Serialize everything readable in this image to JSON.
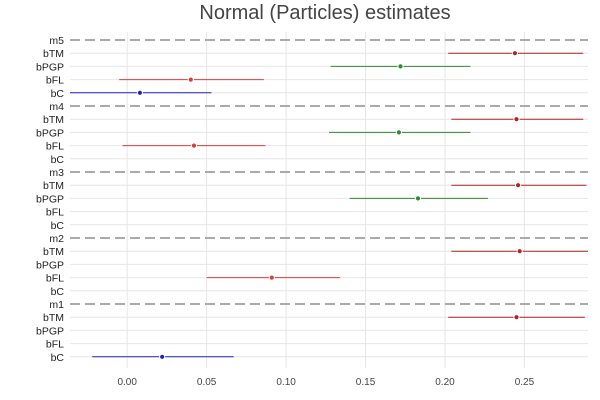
{
  "chart_data": {
    "type": "forest",
    "title": "Normal (Particles) estimates",
    "xlabel": "",
    "ylabel": "",
    "xlim": [
      -0.036,
      0.29
    ],
    "xticks": [
      0.0,
      0.05,
      0.1,
      0.15,
      0.2,
      0.25
    ],
    "xtick_labels": [
      "0.00",
      "0.05",
      "0.10",
      "0.15",
      "0.20",
      "0.25"
    ],
    "grid": true,
    "term_colors": {
      "bTM": "#b22222",
      "bPGP": "#2e8b2e",
      "bFL": "#e03c3c",
      "bC": "#2222bb"
    },
    "groups": [
      {
        "name": "m5",
        "rows": [
          {
            "term": "bTM",
            "estimate": 0.244,
            "low": 0.202,
            "high": 0.287
          },
          {
            "term": "bPGP",
            "estimate": 0.172,
            "low": 0.128,
            "high": 0.216
          },
          {
            "term": "bFL",
            "estimate": 0.04,
            "low": -0.005,
            "high": 0.086
          },
          {
            "term": "bC",
            "estimate": 0.008,
            "low": -0.036,
            "high": 0.053
          }
        ]
      },
      {
        "name": "m4",
        "rows": [
          {
            "term": "bTM",
            "estimate": 0.245,
            "low": 0.204,
            "high": 0.287
          },
          {
            "term": "bPGP",
            "estimate": 0.171,
            "low": 0.127,
            "high": 0.216
          },
          {
            "term": "bFL",
            "estimate": 0.042,
            "low": -0.003,
            "high": 0.087
          },
          {
            "term": "bC"
          }
        ]
      },
      {
        "name": "m3",
        "rows": [
          {
            "term": "bTM",
            "estimate": 0.246,
            "low": 0.204,
            "high": 0.289
          },
          {
            "term": "bPGP",
            "estimate": 0.183,
            "low": 0.14,
            "high": 0.227
          },
          {
            "term": "bFL"
          },
          {
            "term": "bC"
          }
        ]
      },
      {
        "name": "m2",
        "rows": [
          {
            "term": "bTM",
            "estimate": 0.247,
            "low": 0.204,
            "high": 0.29
          },
          {
            "term": "bPGP"
          },
          {
            "term": "bFL",
            "estimate": 0.091,
            "low": 0.05,
            "high": 0.134
          },
          {
            "term": "bC"
          }
        ]
      },
      {
        "name": "m1",
        "rows": [
          {
            "term": "bTM",
            "estimate": 0.245,
            "low": 0.202,
            "high": 0.288
          },
          {
            "term": "bPGP"
          },
          {
            "term": "bFL"
          },
          {
            "term": "bC",
            "estimate": 0.022,
            "low": -0.022,
            "high": 0.067
          }
        ]
      }
    ]
  }
}
